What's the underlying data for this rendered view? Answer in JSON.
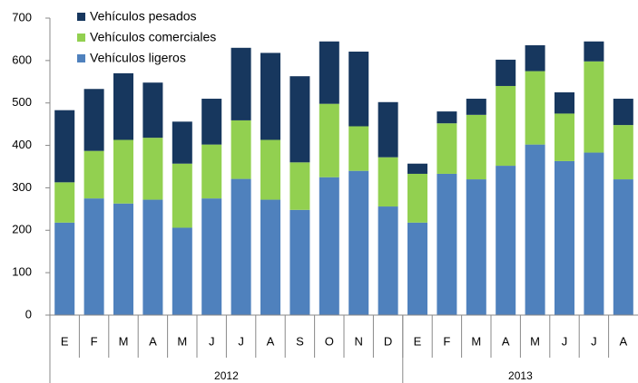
{
  "chart_data": {
    "type": "stacked_bar",
    "categories": [
      "E",
      "F",
      "M",
      "A",
      "M",
      "J",
      "J",
      "A",
      "S",
      "O",
      "N",
      "D",
      "E",
      "F",
      "M",
      "A",
      "M",
      "J",
      "J",
      "A"
    ],
    "groups": [
      {
        "label": "2012",
        "count": 12
      },
      {
        "label": "2013",
        "count": 8
      }
    ],
    "series": [
      {
        "name": "Vehículos ligeros",
        "color": "#4f81bd",
        "values": [
          218,
          275,
          263,
          272,
          206,
          275,
          321,
          272,
          248,
          325,
          340,
          256,
          218,
          333,
          320,
          352,
          402,
          363,
          383,
          320
        ]
      },
      {
        "name": "Vehículos comerciales",
        "color": "#92d050",
        "values": [
          95,
          112,
          150,
          146,
          151,
          127,
          138,
          141,
          112,
          173,
          105,
          116,
          115,
          119,
          152,
          188,
          173,
          112,
          215,
          128
        ]
      },
      {
        "name": "Vehículos pesados",
        "color": "#17375e",
        "values": [
          170,
          146,
          157,
          130,
          99,
          108,
          171,
          205,
          203,
          147,
          176,
          130,
          24,
          28,
          38,
          62,
          61,
          50,
          47,
          62
        ]
      }
    ],
    "ylim": [
      0,
      700
    ],
    "yticks": [
      0,
      100,
      200,
      300,
      400,
      500,
      600,
      700
    ],
    "legend": "top-left"
  }
}
